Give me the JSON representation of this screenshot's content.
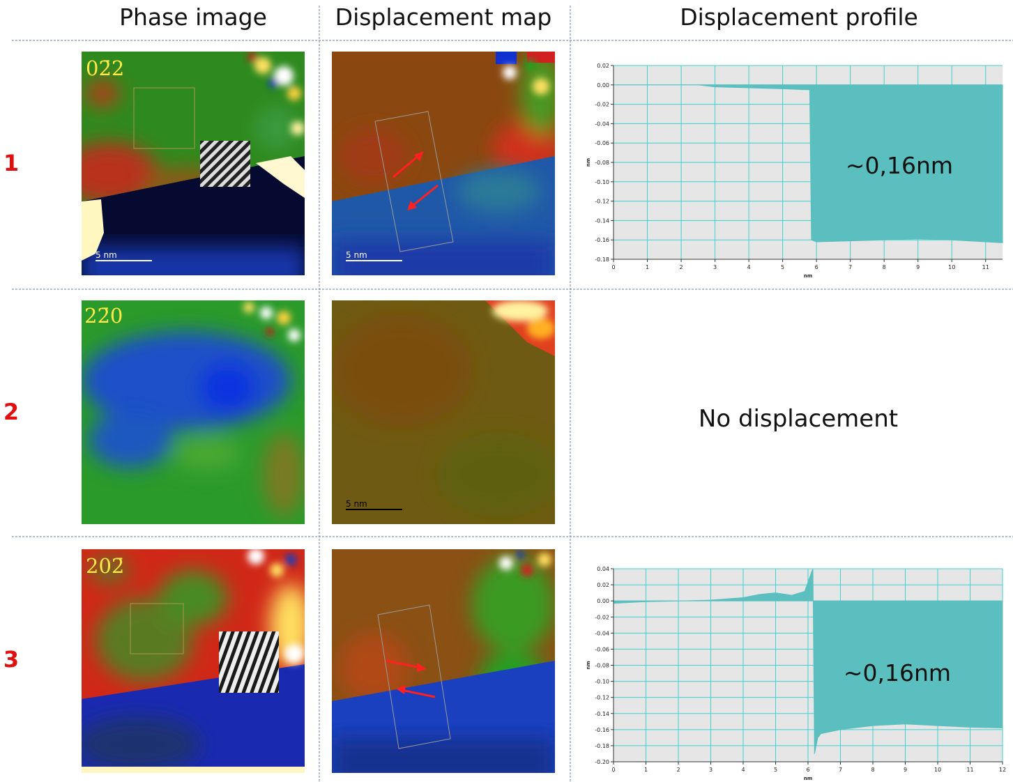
{
  "header": {
    "columns": [
      "Phase image",
      "Displacement map",
      "Displacement profile"
    ]
  },
  "rows": [
    {
      "label": "1",
      "reflection": "02̄2",
      "phase_scale_bar": "5 nm",
      "map_scale_bar": "5 nm"
    },
    {
      "label": "2",
      "reflection": "22̄0",
      "map_scale_bar": "5 nm",
      "profile_text": "No displacement"
    },
    {
      "label": "3",
      "reflection": "202̄"
    }
  ],
  "chart_data": [
    {
      "type": "area",
      "annotation": "~0,16nm",
      "x_label": "nm",
      "y_label": "nm",
      "color": "#5bbfbf",
      "grid": true,
      "x": [
        0,
        1,
        2,
        2.5,
        3,
        4,
        5,
        5.7,
        5.8,
        5.85,
        6,
        7,
        8,
        9,
        10,
        11,
        11.5
      ],
      "values": [
        0,
        0,
        0,
        0,
        -0.002,
        -0.003,
        -0.004,
        -0.005,
        -0.005,
        -0.16,
        -0.162,
        -0.161,
        -0.16,
        -0.159,
        -0.16,
        -0.162,
        -0.163
      ],
      "xlim": [
        0,
        11.5
      ],
      "xticks": [
        0,
        1,
        2,
        3,
        4,
        5,
        6,
        7,
        8,
        9,
        10,
        11
      ],
      "ylim": [
        -0.18,
        0.02
      ],
      "yticks": [
        {
          "value": 0.02,
          "label": "0.02"
        },
        {
          "value": 0,
          "label": "0.00"
        },
        {
          "value": -0.02,
          "label": "-0.02"
        },
        {
          "value": -0.04,
          "label": "-0.04"
        },
        {
          "value": -0.06,
          "label": "-0.06"
        },
        {
          "value": -0.08,
          "label": "-0.08"
        },
        {
          "value": -0.1,
          "label": "-0.10"
        },
        {
          "value": -0.12,
          "label": "-0.12"
        },
        {
          "value": -0.14,
          "label": "-0.14"
        },
        {
          "value": -0.16,
          "label": "-0.16"
        },
        {
          "value": -0.18,
          "label": "-0.18"
        }
      ]
    },
    {
      "type": "area",
      "annotation": "~0,16nm",
      "x_label": "nm",
      "y_label": "nm",
      "color": "#5bbfbf",
      "grid": true,
      "x": [
        0,
        1,
        2,
        3,
        4,
        4.5,
        5,
        5.5,
        5.9,
        6.1,
        6.15,
        6.2,
        6.3,
        6.4,
        7,
        8,
        9,
        10,
        11,
        12
      ],
      "values": [
        -0.003,
        -0.001,
        0,
        0.001,
        0.004,
        0.008,
        0.01,
        0.007,
        0.012,
        0.035,
        0.04,
        -0.19,
        -0.17,
        -0.165,
        -0.16,
        -0.155,
        -0.153,
        -0.155,
        -0.157,
        -0.158
      ],
      "xlim": [
        0,
        12
      ],
      "xticks": [
        0,
        1,
        2,
        3,
        4,
        5,
        6,
        7,
        8,
        9,
        10,
        11,
        12
      ],
      "ylim": [
        -0.2,
        0.04
      ],
      "yticks": [
        {
          "value": 0.04,
          "label": "0.04"
        },
        {
          "value": 0.02,
          "label": "0.02"
        },
        {
          "value": 0,
          "label": "0.00"
        },
        {
          "value": -0.02,
          "label": "-0.02"
        },
        {
          "value": -0.04,
          "label": "-0.04"
        },
        {
          "value": -0.06,
          "label": "-0.06"
        },
        {
          "value": -0.08,
          "label": "-0.08"
        },
        {
          "value": -0.1,
          "label": "-0.10"
        },
        {
          "value": -0.12,
          "label": "-0.12"
        },
        {
          "value": -0.14,
          "label": "-0.14"
        },
        {
          "value": -0.16,
          "label": "-0.16"
        },
        {
          "value": -0.18,
          "label": "-0.18"
        },
        {
          "value": -0.2,
          "label": "-0.20"
        }
      ]
    }
  ]
}
